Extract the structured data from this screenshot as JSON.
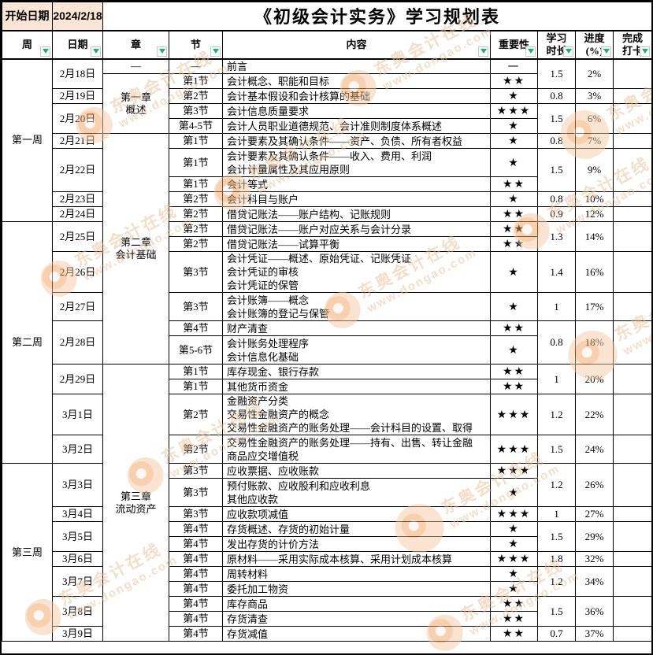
{
  "meta": {
    "start_label": "开始日期",
    "start_date": "2024/2/18",
    "title": "《初级会计实务》学习规划表"
  },
  "columns": {
    "week": [
      "周"
    ],
    "date": [
      "日期"
    ],
    "chapter": [
      "章"
    ],
    "section": [
      "节"
    ],
    "content": [
      "内容"
    ],
    "importance": [
      "重要性"
    ],
    "duration": [
      "学习",
      "时长"
    ],
    "progress": [
      "进度",
      "(%)"
    ],
    "checkin": [
      "完成",
      "打卡"
    ]
  },
  "weeks": [
    {
      "label": "第一周",
      "span": 10
    },
    {
      "label": "第二周",
      "span": 10
    },
    {
      "label": "第三周",
      "span": 11
    }
  ],
  "chapters": [
    {
      "label": [
        "—"
      ],
      "span": 1
    },
    {
      "label": [
        "第一章",
        "概述"
      ],
      "span": 4
    },
    {
      "label": [
        "第二章",
        "会计基础"
      ],
      "span": 11
    },
    {
      "label": [
        "第三章",
        "流动资产"
      ],
      "span": 15
    }
  ],
  "days": [
    {
      "date": "2月18日",
      "duration": "1.5",
      "progress": "2%",
      "rows": [
        {
          "section": "—",
          "lines": [
            "前言"
          ],
          "importance": "—"
        },
        {
          "section": "第1节",
          "lines": [
            "会计概念、职能和目标"
          ],
          "importance": "★★"
        }
      ]
    },
    {
      "date": "2月19日",
      "duration": "0.8",
      "progress": "3%",
      "rows": [
        {
          "section": "第2节",
          "lines": [
            "会计基本假设和会计核算的基础"
          ],
          "importance": "★"
        }
      ]
    },
    {
      "date": "2月20日",
      "duration": "1.5",
      "progress": "6%",
      "rows": [
        {
          "section": "第3节",
          "lines": [
            "会计信息质量要求"
          ],
          "importance": "★★★"
        },
        {
          "section": "第4-5节",
          "lines": [
            "会计人员职业道德规范、会计准则制度体系概述"
          ],
          "importance": "★"
        }
      ]
    },
    {
      "date": "2月21日",
      "duration": "0.8",
      "progress": "7%",
      "rows": [
        {
          "section": "第1节",
          "lines": [
            "会计要素及其确认条件——资产、负债、所有者权益"
          ],
          "importance": "★"
        }
      ]
    },
    {
      "date": "2月22日",
      "duration": "1.5",
      "progress": "9%",
      "rows": [
        {
          "section": "第1节",
          "lines": [
            "会计要素及其确认条件——收入、费用、利润",
            "会计计量属性及其应用原则"
          ],
          "importance": "★"
        },
        {
          "section": "第1节",
          "lines": [
            "会计等式"
          ],
          "importance": "★★"
        }
      ]
    },
    {
      "date": "2月23日",
      "duration": "0.8",
      "progress": "10%",
      "rows": [
        {
          "section": "第2节",
          "lines": [
            "会计科目与账户"
          ],
          "importance": "★"
        }
      ]
    },
    {
      "date": "2月24日",
      "duration": "0.9",
      "progress": "12%",
      "rows": [
        {
          "section": "第2节",
          "lines": [
            "借贷记账法——账户结构、记账规则"
          ],
          "importance": "★★"
        }
      ]
    },
    {
      "date": "2月25日",
      "duration": "1.3",
      "progress": "14%",
      "rows": [
        {
          "section": "第2节",
          "lines": [
            "借贷记账法——账户对应关系与会计分录"
          ],
          "importance": "★★"
        },
        {
          "section": "第2节",
          "lines": [
            "借贷记账法——试算平衡"
          ],
          "importance": "★★"
        }
      ]
    },
    {
      "date": "2月26日",
      "duration": "1.4",
      "progress": "16%",
      "rows": [
        {
          "section": "第3节",
          "lines": [
            "会计凭证——概述、原始凭证、记账凭证",
            "会计凭证的审核",
            "会计凭证的保管"
          ],
          "importance": "★"
        }
      ]
    },
    {
      "date": "2月27日",
      "duration": "1",
      "progress": "17%",
      "rows": [
        {
          "section": "第3节",
          "lines": [
            "会计账簿——概念",
            "会计账簿的登记与保管"
          ],
          "importance": "★"
        }
      ]
    },
    {
      "date": "2月28日",
      "duration": "0.8",
      "progress": "18%",
      "rows": [
        {
          "section": "第4节",
          "lines": [
            "财产清查"
          ],
          "importance": "★★"
        },
        {
          "section": "第5-6节",
          "lines": [
            "会计账务处理程序",
            "会计信息化基础"
          ],
          "importance": "★"
        }
      ]
    },
    {
      "date": "2月29日",
      "duration": "1",
      "progress": "20%",
      "rows": [
        {
          "section": "第1节",
          "lines": [
            "库存现金、银行存款"
          ],
          "importance": "★★"
        },
        {
          "section": "第1节",
          "lines": [
            "其他货币资金"
          ],
          "importance": "★★"
        }
      ]
    },
    {
      "date": "3月1日",
      "duration": "1.2",
      "progress": "22%",
      "rows": [
        {
          "section": "第2节",
          "lines": [
            "金融资产分类",
            "交易性金融资产的概念",
            "交易性金融资产的账务处理——会计科目的设置、取得"
          ],
          "importance": "★★★"
        }
      ]
    },
    {
      "date": "3月2日",
      "duration": "1.5",
      "progress": "24%",
      "rows": [
        {
          "section": "第2节",
          "lines": [
            "交易性金融资产的账务处理——持有、出售、转让金融",
            "商品应交增值税"
          ],
          "importance": "★★★"
        }
      ]
    },
    {
      "date": "3月3日",
      "duration": "1.2",
      "progress": "26%",
      "rows": [
        {
          "section": "第3节",
          "lines": [
            "应收票据、应收账款"
          ],
          "importance": "★★★"
        },
        {
          "section": "第3节",
          "lines": [
            "预付账款、应收股利和应收利息",
            "其他应收款"
          ],
          "importance": "★"
        }
      ]
    },
    {
      "date": "3月4日",
      "duration": "1",
      "progress": "27%",
      "rows": [
        {
          "section": "第3节",
          "lines": [
            "应收款项减值"
          ],
          "importance": "★★★"
        }
      ]
    },
    {
      "date": "3月5日",
      "duration": "1.5",
      "progress": "29%",
      "rows": [
        {
          "section": "第4节",
          "lines": [
            "存货概述、存货的初始计量"
          ],
          "importance": "★"
        },
        {
          "section": "第4节",
          "lines": [
            "发出存货的计价方法"
          ],
          "importance": "★"
        }
      ]
    },
    {
      "date": "3月6日",
      "duration": "1.8",
      "progress": "32%",
      "rows": [
        {
          "section": "第4节",
          "lines": [
            "原材料——采用实际成本核算、采用计划成本核算"
          ],
          "importance": "★★★"
        }
      ]
    },
    {
      "date": "3月7日",
      "duration": "1.2",
      "progress": "34%",
      "rows": [
        {
          "section": "第4节",
          "lines": [
            "周转材料"
          ],
          "importance": "★"
        },
        {
          "section": "第4节",
          "lines": [
            "委托加工物资"
          ],
          "importance": "★"
        }
      ]
    },
    {
      "date": "3月8日",
      "duration": "1.5",
      "progress": "36%",
      "rows": [
        {
          "section": "第4节",
          "lines": [
            "库存商品"
          ],
          "importance": "★★"
        },
        {
          "section": "第4节",
          "lines": [
            "存货清查"
          ],
          "importance": "★★"
        }
      ]
    },
    {
      "date": "3月9日",
      "duration": "0.7",
      "progress": "37%",
      "rows": [
        {
          "section": "第4节",
          "lines": [
            "存货减值"
          ],
          "importance": "★★"
        }
      ]
    }
  ],
  "watermark": {
    "text_cn": "东奥会计在线",
    "text_url": "www.dongao.com"
  },
  "colors": {
    "header_fill": "#FBE5D6",
    "filter_arrow_green": "#1FAE6E",
    "grid_border": "#000000",
    "watermark_orange": "#EFA261",
    "star_black": "#000000"
  }
}
